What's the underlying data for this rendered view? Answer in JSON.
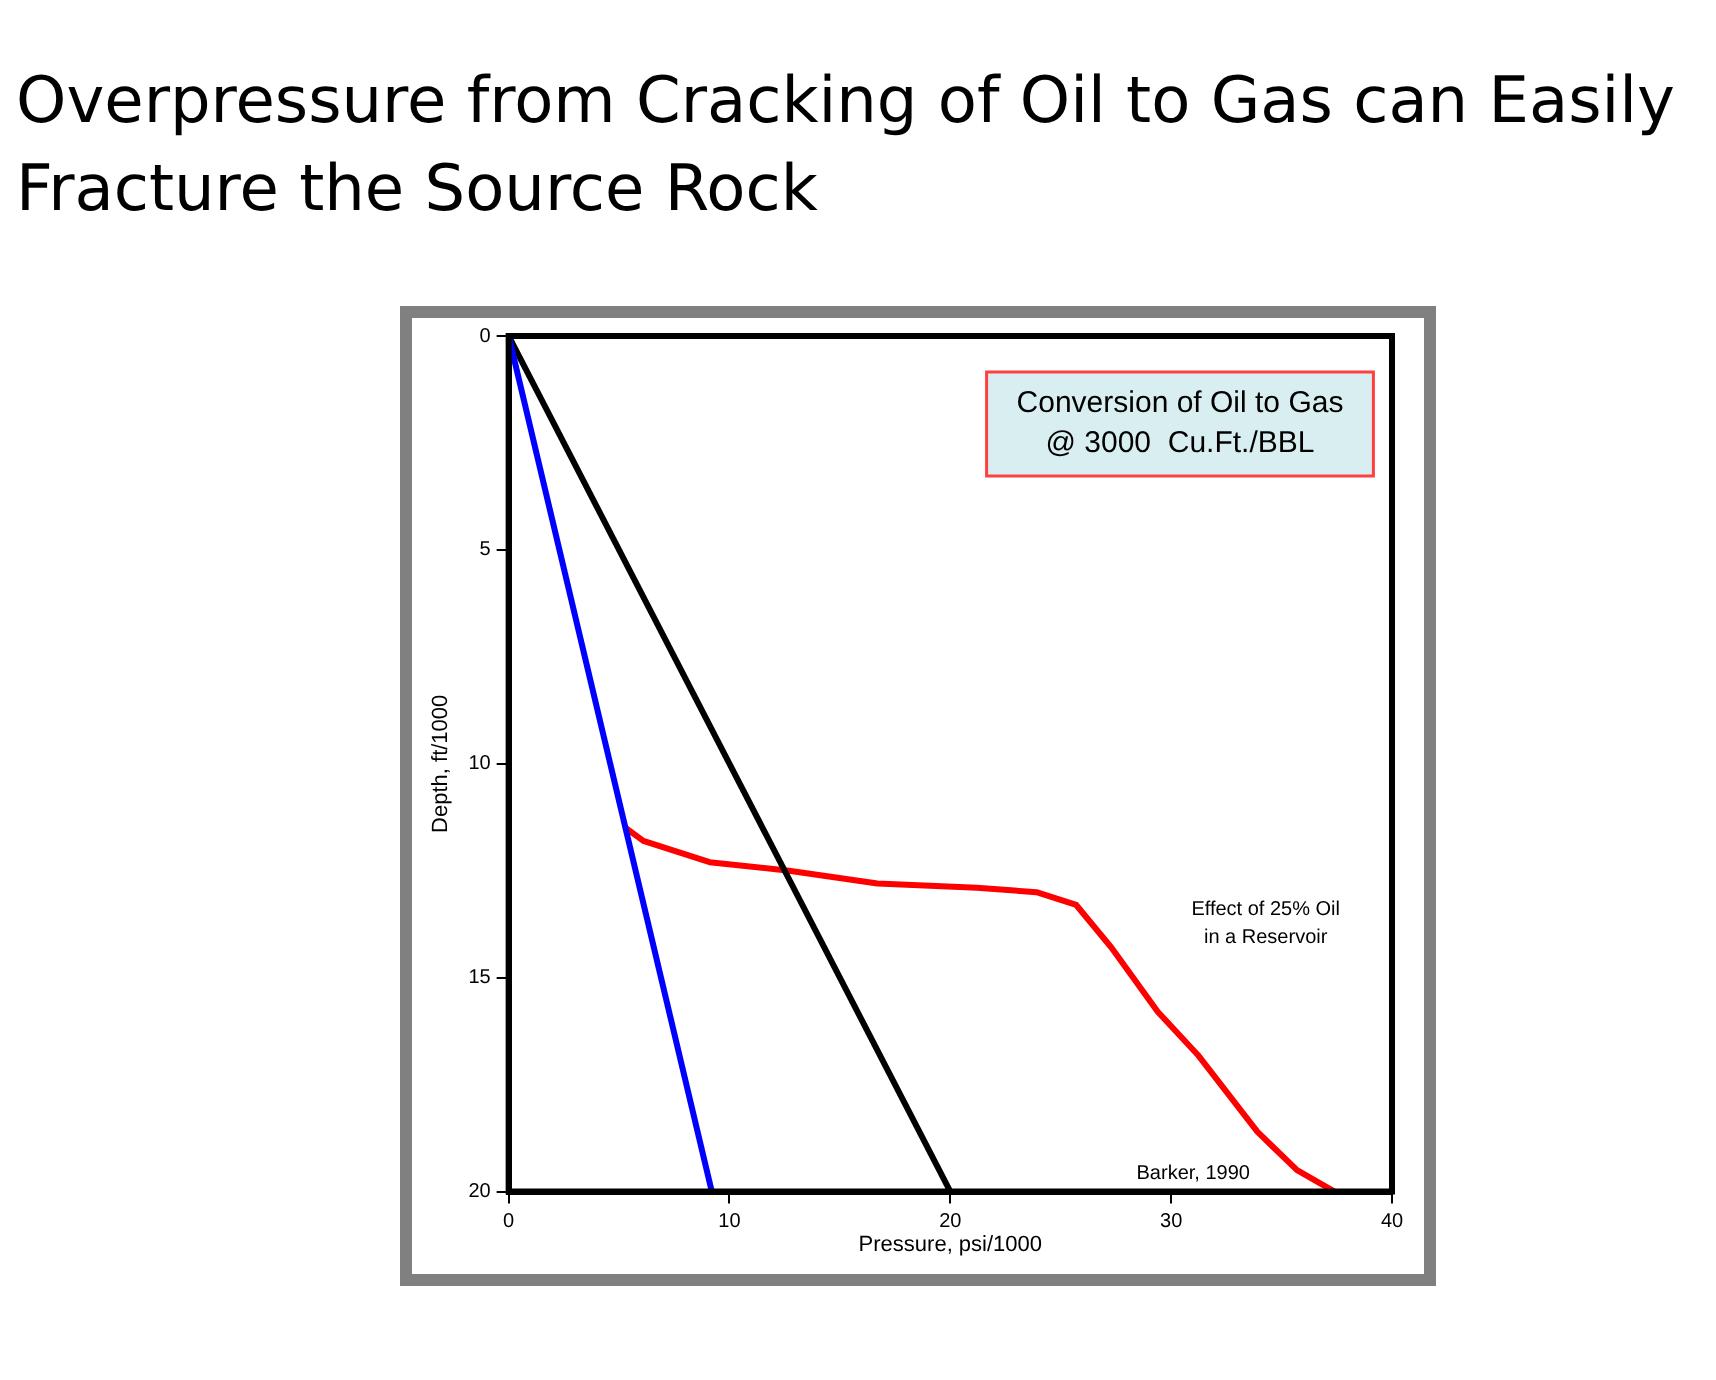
{
  "chart_data": {
    "type": "line",
    "title": "Overpressure from Cracking of Oil to Gas can Easily Fracture the Source Rock",
    "xlabel": "Pressure, psi/1000",
    "ylabel": "Depth, ft/1000",
    "annotations": [
      "Conversion of Oil to Gas\n@ 3000  Cu.Ft./BBL",
      "Effect of 25% Oil\nin a Reservoir",
      "Barker, 1990"
    ],
    "series": [
      {
        "color": "#0000ff",
        "x": [
          0,
          9.2
        ],
        "values": [
          0,
          20
        ]
      },
      {
        "color": "#000000",
        "x": [
          0,
          20
        ],
        "values": [
          0,
          20
        ]
      },
      {
        "color": "#ff0000",
        "x": [
          5.3,
          6.1,
          9.1,
          12.7,
          16.7,
          21.2,
          23.9,
          25.7,
          27.3,
          29.4,
          31.2,
          33.9,
          35.7,
          37.4
        ],
        "values": [
          11.5,
          11.8,
          12.3,
          12.5,
          12.8,
          12.9,
          13.0,
          13.3,
          14.3,
          15.8,
          16.8,
          18.6,
          19.5,
          20
        ]
      }
    ],
    "xlim": [
      0,
      40
    ],
    "xticks": [
      0,
      10,
      20,
      30,
      40
    ],
    "ylim": [
      20,
      0
    ],
    "yticks": [
      0,
      5,
      10,
      15,
      20
    ],
    "grid": false,
    "legend": false,
    "marker": "none",
    "line_style": "solid"
  }
}
